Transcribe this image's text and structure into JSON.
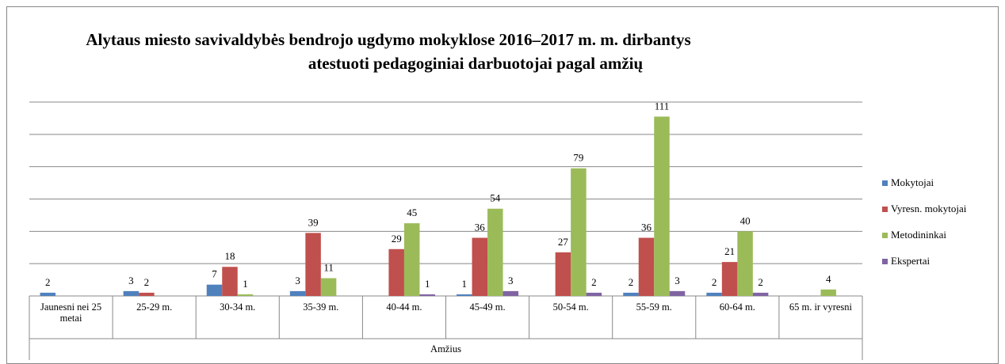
{
  "chart_data": {
    "type": "bar",
    "title": [
      "Alytaus miesto savivaldybės bendrojo ugdymo mokyklose 2016–2017 m. m. dirbantys",
      "atestuoti pedagoginiai darbuotojai  pagal amžių"
    ],
    "x_label": "Amžius",
    "categories": [
      "Jaunesni nei 25 metai",
      "25-29 m.",
      "30-34 m.",
      "35-39 m.",
      "40-44 m.",
      "45-49 m.",
      "50-54 m.",
      "55-59 m.",
      "60-64 m.",
      "65 m. ir vyresni"
    ],
    "series": [
      {
        "name": "Mokytojai",
        "color": "#4f81bd",
        "values": [
          2,
          3,
          7,
          3,
          null,
          1,
          null,
          2,
          2,
          null
        ]
      },
      {
        "name": "Vyresn. mokytojai",
        "color": "#c0504d",
        "values": [
          null,
          2,
          18,
          39,
          29,
          36,
          27,
          36,
          21,
          null
        ]
      },
      {
        "name": "Metodininkai",
        "color": "#9bbb59",
        "values": [
          null,
          null,
          1,
          11,
          45,
          54,
          79,
          111,
          40,
          4
        ]
      },
      {
        "name": "Ekspertai",
        "color": "#8064a2",
        "values": [
          null,
          null,
          null,
          null,
          1,
          3,
          2,
          3,
          2,
          null
        ]
      }
    ],
    "ylim": [
      0,
      120
    ],
    "yticks": [
      0,
      20,
      40,
      60,
      80,
      100,
      120
    ],
    "grid": true,
    "legend": "right"
  }
}
